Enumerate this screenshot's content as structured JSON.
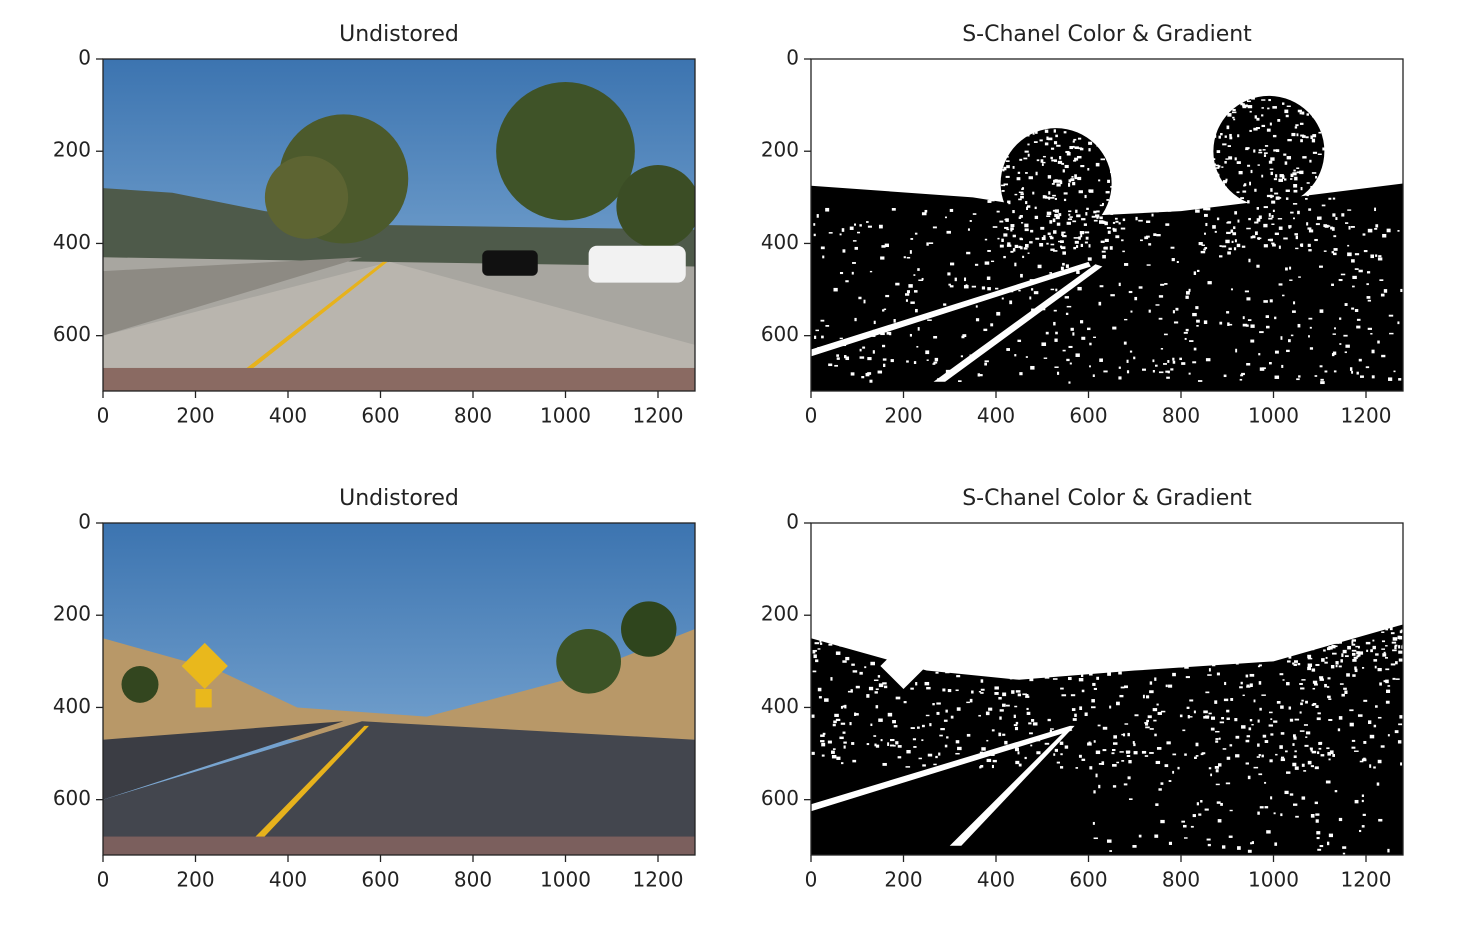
{
  "chart_data": [
    {
      "type": "image",
      "scene": "color-1",
      "title": "Undistored",
      "xlim": [
        0,
        1280
      ],
      "ylim": [
        720,
        0
      ],
      "xticks": [
        0,
        200,
        400,
        600,
        800,
        1000,
        1200
      ],
      "yticks": [
        0,
        200,
        400,
        600
      ]
    },
    {
      "type": "image",
      "scene": "binary-1",
      "title": "S-Chanel Color & Gradient",
      "xlim": [
        0,
        1280
      ],
      "ylim": [
        720,
        0
      ],
      "xticks": [
        0,
        200,
        400,
        600,
        800,
        1000,
        1200
      ],
      "yticks": [
        0,
        200,
        400,
        600
      ]
    },
    {
      "type": "image",
      "scene": "color-2",
      "title": "Undistored",
      "xlim": [
        0,
        1280
      ],
      "ylim": [
        720,
        0
      ],
      "xticks": [
        0,
        200,
        400,
        600,
        800,
        1000,
        1200
      ],
      "yticks": [
        0,
        200,
        400,
        600
      ]
    },
    {
      "type": "image",
      "scene": "binary-2",
      "title": "S-Chanel Color & Gradient",
      "xlim": [
        0,
        1280
      ],
      "ylim": [
        720,
        0
      ],
      "xticks": [
        0,
        200,
        400,
        600,
        800,
        1000,
        1200
      ],
      "yticks": [
        0,
        200,
        400,
        600
      ]
    }
  ]
}
